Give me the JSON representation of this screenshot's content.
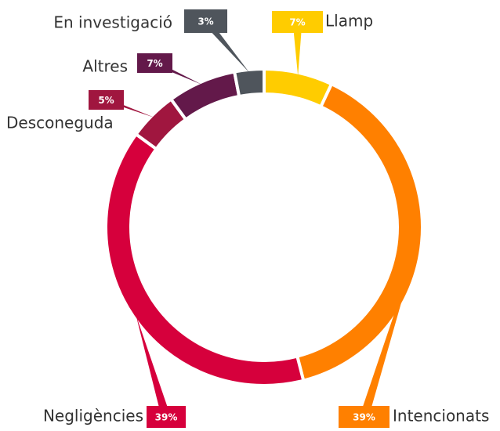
{
  "chart_data": {
    "type": "donut",
    "categories": [
      "Llamp",
      "Intencionats",
      "Negligències",
      "Desconeguda",
      "Altres",
      "En investigació"
    ],
    "values": [
      7,
      39,
      39,
      5,
      7,
      3
    ],
    "value_labels": [
      "7%",
      "39%",
      "39%",
      "5%",
      "7%",
      "3%"
    ],
    "colors": [
      "#ffcc00",
      "#ff8000",
      "#d6003c",
      "#a0163f",
      "#63194a",
      "#4f555c"
    ]
  }
}
